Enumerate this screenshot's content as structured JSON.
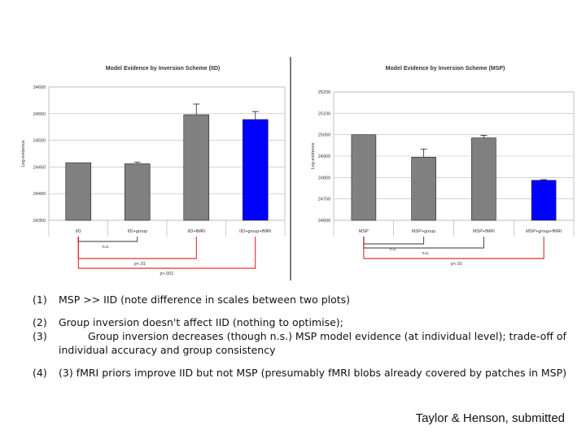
{
  "chart_data": [
    {
      "type": "bar",
      "title": "Model Evidence by Inversion Scheme (IID)",
      "ylabel": "Log-evidence",
      "xlabel": "",
      "categories": [
        "IID",
        "IID+group",
        "IID+fMRI",
        "IID+group+fMRI"
      ],
      "values": [
        24458,
        24456,
        24548,
        24539
      ],
      "errors": [
        0,
        3,
        20,
        15
      ],
      "bar_colors": [
        "#808080",
        "#808080",
        "#808080",
        "#0000ff"
      ],
      "yticks": [
        "24350",
        "24400",
        "24450",
        "24500",
        "24550",
        "24600"
      ],
      "ylim": [
        24350,
        24600
      ],
      "grid": true,
      "comparisons": [
        "n.s.",
        "p<.01",
        "p<.001"
      ]
    },
    {
      "type": "bar",
      "title": "Model Evidence by Inversion Scheme (MSP)",
      "ylabel": "Log-evidence",
      "xlabel": "",
      "categories": [
        "MSP",
        "MSP+group",
        "MSP+fMRI",
        "MSP+group+fMRI"
      ],
      "values": [
        25000,
        24895,
        24985,
        24787
      ],
      "errors": [
        0,
        38,
        12,
        3
      ],
      "bar_colors": [
        "#808080",
        "#808080",
        "#808080",
        "#0000ff"
      ],
      "yticks": [
        "24600",
        "24700",
        "24800",
        "24900",
        "25000",
        "25100",
        "25200"
      ],
      "ylim": [
        24600,
        25200
      ],
      "grid": true,
      "comparisons": [
        "n.s.",
        "n.s.",
        "p<.01"
      ]
    }
  ],
  "notes": [
    {
      "num": "(1)",
      "text": "MSP >> IID (note difference in scales between two plots)"
    },
    {
      "num": "(2)",
      "text": "Group inversion doesn't affect IID (nothing to optimise);"
    },
    {
      "num": "(3)",
      "text": "Group inversion decreases (though n.s.) MSP model evidence (at individual level); trade-off of individual accuracy and group consistency"
    },
    {
      "num": "(4)",
      "text": "(3)   fMRI priors improve IID but not MSP (presumably fMRI blobs already covered by patches in MSP)"
    }
  ],
  "credit": "Taylor & Henson, submitted"
}
